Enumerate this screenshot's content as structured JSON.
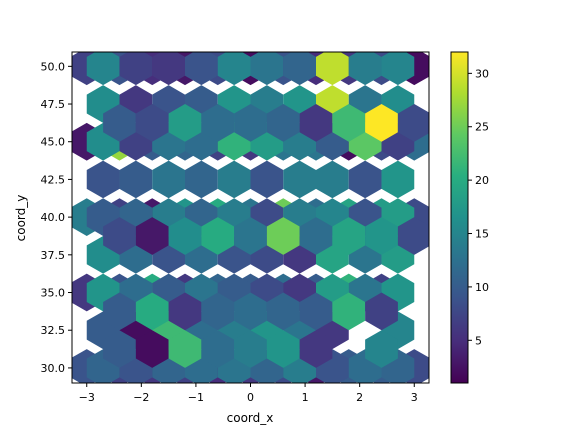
{
  "chart_data": {
    "type": "heatmap",
    "subtype": "hexbin",
    "title": "",
    "xlabel": "coord_x",
    "ylabel": "coord_y",
    "xlim": [
      -3.27,
      3.27
    ],
    "ylim": [
      29.0,
      50.95
    ],
    "x_ticks": [
      -3,
      -2,
      -1,
      0,
      1,
      2,
      3
    ],
    "y_ticks": [
      30.0,
      32.5,
      35.0,
      37.5,
      40.0,
      42.5,
      45.0,
      47.5,
      50.0
    ],
    "y_tick_labels": [
      "30.0",
      "32.5",
      "35.0",
      "37.5",
      "40.0",
      "42.5",
      "45.0",
      "47.5",
      "50.0"
    ],
    "colormap": "viridis",
    "colorbar": {
      "min": 1,
      "max": 32,
      "ticks": [
        5,
        10,
        15,
        20,
        25,
        30
      ]
    },
    "grid": false,
    "hex_width": 0.6,
    "hex_height": 2.5,
    "cells": [
      {
        "x": -3.0,
        "y": 30.0,
        "count": 9
      },
      {
        "x": -2.4,
        "y": 30.0,
        "count": 7
      },
      {
        "x": -1.8,
        "y": 30.0,
        "count": 6
      },
      {
        "x": -1.2,
        "y": 30.0,
        "count": 7
      },
      {
        "x": -0.6,
        "y": 30.0,
        "count": 5
      },
      {
        "x": 0.0,
        "y": 30.0,
        "count": 6
      },
      {
        "x": 0.6,
        "y": 30.0,
        "count": 8
      },
      {
        "x": 1.2,
        "y": 30.0,
        "count": 3
      },
      {
        "x": 1.8,
        "y": 30.0,
        "count": 10
      },
      {
        "x": 2.4,
        "y": 30.0,
        "count": 10
      },
      {
        "x": 3.0,
        "y": 30.0,
        "count": 8
      },
      {
        "x": -3.0,
        "y": 35.0,
        "count": 6
      },
      {
        "x": -2.4,
        "y": 35.0,
        "count": 9
      },
      {
        "x": -1.8,
        "y": 35.0,
        "count": 20
      },
      {
        "x": -1.2,
        "y": 35.0,
        "count": 6
      },
      {
        "x": -0.6,
        "y": 35.0,
        "count": 11
      },
      {
        "x": 0.0,
        "y": 35.0,
        "count": 10
      },
      {
        "x": 0.6,
        "y": 35.0,
        "count": 12
      },
      {
        "x": 1.2,
        "y": 35.0,
        "count": 10
      },
      {
        "x": 1.8,
        "y": 35.0,
        "count": 21
      },
      {
        "x": 2.4,
        "y": 35.0,
        "count": 7
      },
      {
        "x": -3.0,
        "y": 40.0,
        "count": 14
      },
      {
        "x": -2.4,
        "y": 40.0,
        "count": 7
      },
      {
        "x": -1.8,
        "y": 40.0,
        "count": 3
      },
      {
        "x": -1.2,
        "y": 40.0,
        "count": 17
      },
      {
        "x": -0.6,
        "y": 40.0,
        "count": 20
      },
      {
        "x": 0.0,
        "y": 40.0,
        "count": 13
      },
      {
        "x": 0.6,
        "y": 40.0,
        "count": 25
      },
      {
        "x": 1.2,
        "y": 40.0,
        "count": 12
      },
      {
        "x": 1.8,
        "y": 40.0,
        "count": 19
      },
      {
        "x": 2.4,
        "y": 40.0,
        "count": 18
      },
      {
        "x": 3.0,
        "y": 40.0,
        "count": 8
      },
      {
        "x": -3.0,
        "y": 45.0,
        "count": 3
      },
      {
        "x": -2.4,
        "y": 45.0,
        "count": 27
      },
      {
        "x": -1.8,
        "y": 45.0,
        "count": 10
      },
      {
        "x": -1.2,
        "y": 45.0,
        "count": 11
      },
      {
        "x": -0.6,
        "y": 45.0,
        "count": 7
      },
      {
        "x": 0.0,
        "y": 45.0,
        "count": 6
      },
      {
        "x": 0.6,
        "y": 45.0,
        "count": 13
      },
      {
        "x": 1.2,
        "y": 45.0,
        "count": 13
      },
      {
        "x": 1.8,
        "y": 45.0,
        "count": 2
      },
      {
        "x": 2.4,
        "y": 45.0,
        "count": 8
      },
      {
        "x": 3.0,
        "y": 45.0,
        "count": 12
      },
      {
        "x": -3.0,
        "y": 50.0,
        "count": 7
      },
      {
        "x": -2.4,
        "y": 50.0,
        "count": 9
      },
      {
        "x": -1.8,
        "y": 50.0,
        "count": 5
      },
      {
        "x": -1.2,
        "y": 50.0,
        "count": 3
      },
      {
        "x": -0.6,
        "y": 50.0,
        "count": 8
      },
      {
        "x": 0.0,
        "y": 50.0,
        "count": 2
      },
      {
        "x": 0.6,
        "y": 50.0,
        "count": 9
      },
      {
        "x": 1.2,
        "y": 50.0,
        "count": 5
      },
      {
        "x": 1.8,
        "y": 50.0,
        "count": 6
      },
      {
        "x": 2.4,
        "y": 50.0,
        "count": 8
      },
      {
        "x": 3.0,
        "y": 50.0,
        "count": 2
      },
      {
        "x": -2.7,
        "y": 32.5,
        "count": 10
      },
      {
        "x": -2.1,
        "y": 32.5,
        "count": 2
      },
      {
        "x": -1.5,
        "y": 32.5,
        "count": 22
      },
      {
        "x": -0.9,
        "y": 32.5,
        "count": 12
      },
      {
        "x": -0.3,
        "y": 32.5,
        "count": 14
      },
      {
        "x": 0.3,
        "y": 32.5,
        "count": 17
      },
      {
        "x": 0.9,
        "y": 32.5,
        "count": 13
      },
      {
        "x": 1.5,
        "y": 32.5,
        "count": 6
      },
      {
        "x": 2.7,
        "y": 32.5,
        "count": 15
      },
      {
        "x": -2.7,
        "y": 37.5,
        "count": 16
      },
      {
        "x": -2.1,
        "y": 37.5,
        "count": 12
      },
      {
        "x": -1.5,
        "y": 37.5,
        "count": 9
      },
      {
        "x": -0.9,
        "y": 37.5,
        "count": 12
      },
      {
        "x": -0.3,
        "y": 37.5,
        "count": 9
      },
      {
        "x": 0.3,
        "y": 37.5,
        "count": 8
      },
      {
        "x": 0.9,
        "y": 37.5,
        "count": 6
      },
      {
        "x": 1.5,
        "y": 37.5,
        "count": 19
      },
      {
        "x": 2.1,
        "y": 37.5,
        "count": 13
      },
      {
        "x": 2.7,
        "y": 37.5,
        "count": 18
      },
      {
        "x": -2.7,
        "y": 42.5,
        "count": 9
      },
      {
        "x": -2.1,
        "y": 42.5,
        "count": 10
      },
      {
        "x": -1.5,
        "y": 42.5,
        "count": 13
      },
      {
        "x": -0.9,
        "y": 42.5,
        "count": 11
      },
      {
        "x": -0.3,
        "y": 42.5,
        "count": 14
      },
      {
        "x": 0.3,
        "y": 42.5,
        "count": 9
      },
      {
        "x": 0.9,
        "y": 42.5,
        "count": 14
      },
      {
        "x": 1.5,
        "y": 42.5,
        "count": 14
      },
      {
        "x": 2.1,
        "y": 42.5,
        "count": 9
      },
      {
        "x": 2.7,
        "y": 42.5,
        "count": 17
      },
      {
        "x": -2.7,
        "y": 47.5,
        "count": 16
      },
      {
        "x": -2.1,
        "y": 47.5,
        "count": 6
      },
      {
        "x": -1.5,
        "y": 47.5,
        "count": 9
      },
      {
        "x": -0.9,
        "y": 47.5,
        "count": 10
      },
      {
        "x": -0.3,
        "y": 47.5,
        "count": 17
      },
      {
        "x": 0.3,
        "y": 47.5,
        "count": 14
      },
      {
        "x": 0.9,
        "y": 47.5,
        "count": 17
      },
      {
        "x": 1.5,
        "y": 47.5,
        "count": 29
      },
      {
        "x": 2.1,
        "y": 47.5,
        "count": 13
      },
      {
        "x": 2.7,
        "y": 47.5,
        "count": 16
      },
      {
        "x": -2.7,
        "y": 45.0,
        "count": 16
      },
      {
        "x": -2.1,
        "y": 45.0,
        "count": 7
      },
      {
        "x": -1.5,
        "y": 45.0,
        "count": 13
      },
      {
        "x": -0.9,
        "y": 45.0,
        "count": 12
      },
      {
        "x": -0.3,
        "y": 45.0,
        "count": 21
      },
      {
        "x": 0.3,
        "y": 45.0,
        "count": 18
      },
      {
        "x": 0.9,
        "y": 45.0,
        "count": 14
      },
      {
        "x": 1.5,
        "y": 45.0,
        "count": 10
      },
      {
        "x": 2.1,
        "y": 45.0,
        "count": 24
      },
      {
        "x": 2.7,
        "y": 45.0,
        "count": 7
      },
      {
        "x": -2.7,
        "y": 40.0,
        "count": 10
      },
      {
        "x": -2.1,
        "y": 40.0,
        "count": 11
      },
      {
        "x": -1.5,
        "y": 40.0,
        "count": 14
      },
      {
        "x": -0.9,
        "y": 40.0,
        "count": 11
      },
      {
        "x": -0.3,
        "y": 40.0,
        "count": 14
      },
      {
        "x": 0.3,
        "y": 40.0,
        "count": 8
      },
      {
        "x": 0.9,
        "y": 40.0,
        "count": 14
      },
      {
        "x": 1.5,
        "y": 40.0,
        "count": 15
      },
      {
        "x": 2.1,
        "y": 40.0,
        "count": 9
      },
      {
        "x": 2.7,
        "y": 40.0,
        "count": 18
      },
      {
        "x": -2.7,
        "y": 35.0,
        "count": 17
      },
      {
        "x": -2.1,
        "y": 35.0,
        "count": 12
      },
      {
        "x": -1.5,
        "y": 35.0,
        "count": 10
      },
      {
        "x": -0.9,
        "y": 35.0,
        "count": 13
      },
      {
        "x": -0.3,
        "y": 35.0,
        "count": 10
      },
      {
        "x": 0.3,
        "y": 35.0,
        "count": 8
      },
      {
        "x": 0.9,
        "y": 35.0,
        "count": 6
      },
      {
        "x": 1.5,
        "y": 35.0,
        "count": 18
      },
      {
        "x": 2.1,
        "y": 35.0,
        "count": 13
      },
      {
        "x": 2.7,
        "y": 35.0,
        "count": 17
      },
      {
        "x": -2.7,
        "y": 30.0,
        "count": 11
      },
      {
        "x": -2.1,
        "y": 30.0,
        "count": 9
      },
      {
        "x": -1.5,
        "y": 30.0,
        "count": 11
      },
      {
        "x": -0.9,
        "y": 30.0,
        "count": 12
      },
      {
        "x": -0.3,
        "y": 30.0,
        "count": 13
      },
      {
        "x": 0.3,
        "y": 30.0,
        "count": 11
      },
      {
        "x": 0.9,
        "y": 30.0,
        "count": 14
      },
      {
        "x": 1.5,
        "y": 30.0,
        "count": 9
      },
      {
        "x": 2.1,
        "y": 30.0,
        "count": 12
      },
      {
        "x": 2.7,
        "y": 30.0,
        "count": 11
      },
      {
        "x": -2.7,
        "y": 50.0,
        "count": 15
      },
      {
        "x": -2.1,
        "y": 50.0,
        "count": 7
      },
      {
        "x": -1.5,
        "y": 50.0,
        "count": 6
      },
      {
        "x": -0.9,
        "y": 50.0,
        "count": 9
      },
      {
        "x": -0.3,
        "y": 50.0,
        "count": 15
      },
      {
        "x": 0.3,
        "y": 50.0,
        "count": 13
      },
      {
        "x": 0.9,
        "y": 50.0,
        "count": 11
      },
      {
        "x": 1.5,
        "y": 50.0,
        "count": 29
      },
      {
        "x": 2.1,
        "y": 50.0,
        "count": 14
      },
      {
        "x": 2.7,
        "y": 50.0,
        "count": 15
      },
      {
        "x": -2.4,
        "y": 46.25,
        "count": 10
      },
      {
        "x": -1.8,
        "y": 46.25,
        "count": 8
      },
      {
        "x": -1.2,
        "y": 46.25,
        "count": 18
      },
      {
        "x": -0.6,
        "y": 46.25,
        "count": 12
      },
      {
        "x": 0.0,
        "y": 46.25,
        "count": 12
      },
      {
        "x": 0.6,
        "y": 46.25,
        "count": 11
      },
      {
        "x": 1.2,
        "y": 46.25,
        "count": 6
      },
      {
        "x": 1.8,
        "y": 46.25,
        "count": 22
      },
      {
        "x": 2.4,
        "y": 46.25,
        "count": 32
      },
      {
        "x": 3.0,
        "y": 46.25,
        "count": 8
      },
      {
        "x": -2.4,
        "y": 38.75,
        "count": 8
      },
      {
        "x": -1.8,
        "y": 38.75,
        "count": 3
      },
      {
        "x": -1.2,
        "y": 38.75,
        "count": 16
      },
      {
        "x": -0.6,
        "y": 38.75,
        "count": 20
      },
      {
        "x": 0.0,
        "y": 38.75,
        "count": 13
      },
      {
        "x": 0.6,
        "y": 38.75,
        "count": 25
      },
      {
        "x": 1.2,
        "y": 38.75,
        "count": 12
      },
      {
        "x": 1.8,
        "y": 38.75,
        "count": 19
      },
      {
        "x": 2.4,
        "y": 38.75,
        "count": 17
      },
      {
        "x": 3.0,
        "y": 38.75,
        "count": 8
      },
      {
        "x": -2.4,
        "y": 33.75,
        "count": 10
      },
      {
        "x": -1.8,
        "y": 33.75,
        "count": 20
      },
      {
        "x": -1.2,
        "y": 33.75,
        "count": 6
      },
      {
        "x": -0.6,
        "y": 33.75,
        "count": 11
      },
      {
        "x": 0.0,
        "y": 33.75,
        "count": 12
      },
      {
        "x": 0.6,
        "y": 33.75,
        "count": 11
      },
      {
        "x": 1.2,
        "y": 33.75,
        "count": 10
      },
      {
        "x": 1.8,
        "y": 33.75,
        "count": 21
      },
      {
        "x": 2.4,
        "y": 33.75,
        "count": 7
      },
      {
        "x": -2.4,
        "y": 31.25,
        "count": 10
      },
      {
        "x": -1.8,
        "y": 31.25,
        "count": 2
      },
      {
        "x": -1.2,
        "y": 31.25,
        "count": 22
      },
      {
        "x": -0.6,
        "y": 31.25,
        "count": 12
      },
      {
        "x": 0.0,
        "y": 31.25,
        "count": 14
      },
      {
        "x": 0.6,
        "y": 31.25,
        "count": 17
      },
      {
        "x": 1.2,
        "y": 31.25,
        "count": 6
      },
      {
        "x": 2.4,
        "y": 31.25,
        "count": 15
      }
    ]
  }
}
